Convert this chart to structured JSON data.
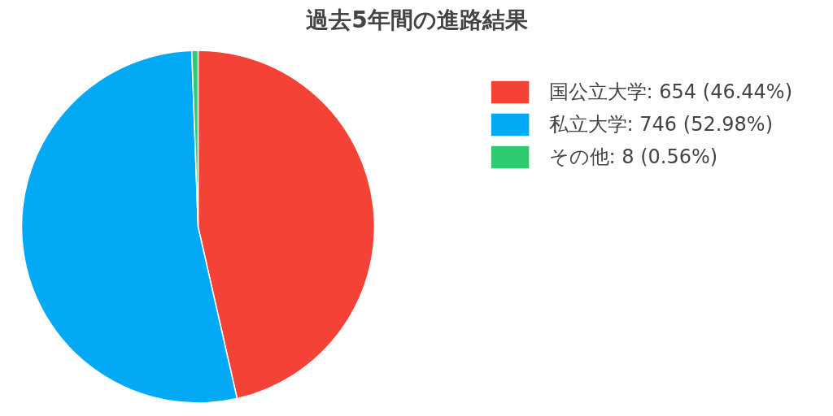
{
  "chart_data": {
    "type": "pie",
    "title": "過去5年間の進路結果",
    "categories": [
      "国公立大学: 654 (46.44%)",
      "私立大学: 746 (52.98%)",
      "その他: 8 (0.56%)"
    ],
    "values": [
      654,
      746,
      8
    ],
    "colors": [
      "#f44336",
      "#03a9f4",
      "#2ecc71"
    ],
    "legend": "top right"
  }
}
